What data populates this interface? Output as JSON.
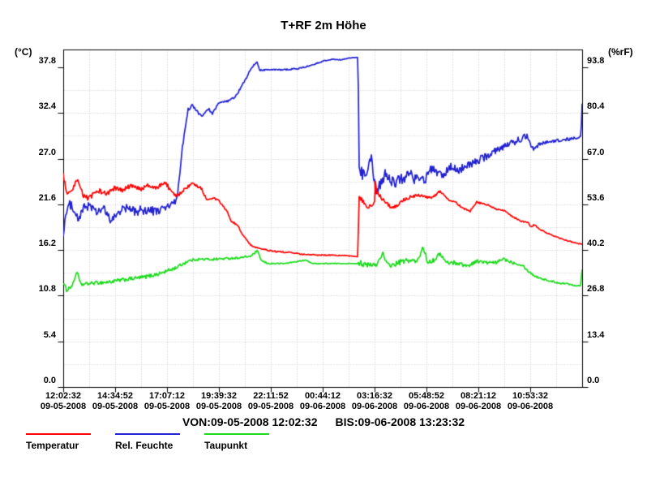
{
  "title": "T+RF 2m Höhe",
  "axes": {
    "left_unit": "(°C)",
    "right_unit": "(%rF)",
    "left_ticks": [
      "37.8",
      "32.4",
      "27.0",
      "21.6",
      "16.2",
      "10.8",
      "5.4",
      "0.0"
    ],
    "right_ticks": [
      "93.8",
      "80.4",
      "67.0",
      "53.6",
      "40.2",
      "26.8",
      "13.4",
      "0.0"
    ],
    "x_ticks": [
      {
        "time": "12:02:32",
        "date": "09-05-2008"
      },
      {
        "time": "14:34:52",
        "date": "09-05-2008"
      },
      {
        "time": "17:07:12",
        "date": "09-05-2008"
      },
      {
        "time": "19:39:32",
        "date": "09-05-2008"
      },
      {
        "time": "22:11:52",
        "date": "09-05-2008"
      },
      {
        "time": "00:44:12",
        "date": "09-06-2008"
      },
      {
        "time": "03:16:32",
        "date": "09-06-2008"
      },
      {
        "time": "05:48:52",
        "date": "09-06-2008"
      },
      {
        "time": "08:21:12",
        "date": "09-06-2008"
      },
      {
        "time": "10:53:32",
        "date": "09-06-2008"
      }
    ]
  },
  "footer": {
    "von": "VON:09-05-2008 12:02:32",
    "bis": "BIS:09-06-2008 13:23:32"
  },
  "legend": [
    {
      "label": "Temperatur",
      "color": "#ff0000"
    },
    {
      "label": "Rel. Feuchte",
      "color": "#2222d2"
    },
    {
      "label": "Taupunkt",
      "color": "#1cdb1c"
    }
  ],
  "colors": {
    "grid": "#c8c8c8",
    "axis": "#000000",
    "background": "#ffffff"
  },
  "chart_data": {
    "type": "line",
    "title": "T+RF 2m Höhe",
    "x_start": "09-05-2008 12:02:32",
    "x_end": "09-06-2008 13:23:32",
    "x_range_hours": [
      0,
      25.35
    ],
    "x_tick_interval": "02:32:20",
    "left_axis": {
      "label": "(°C)",
      "top_tick": 37.8,
      "major_step": 5.4,
      "minor_step": 2.7,
      "min": 0
    },
    "right_axis": {
      "label": "(%rF)",
      "top_tick": 93.8,
      "major_step": 13.4,
      "minor_step": 6.7,
      "min": 0
    },
    "grid": true,
    "legend_position": "bottom-left",
    "series": [
      {
        "name": "Taupunkt",
        "axis": "left",
        "unit": "°C",
        "color": "#1cdb1c",
        "points": [
          [
            0,
            12.3,
            0.2
          ],
          [
            0.16,
            11.5,
            0.25
          ],
          [
            0.45,
            12.0,
            0.2
          ],
          [
            0.67,
            13.7,
            0.15
          ],
          [
            0.85,
            12.1,
            0.2
          ],
          [
            1.5,
            12.3,
            0.2
          ],
          [
            2.2,
            12.4,
            0.22
          ],
          [
            3.0,
            12.7,
            0.22
          ],
          [
            3.96,
            13.0,
            0.22
          ],
          [
            4.7,
            13.4,
            0.22
          ],
          [
            5.5,
            14.1,
            0.2
          ],
          [
            6.1,
            14.9,
            0.18
          ],
          [
            6.5,
            15.1,
            0.15
          ],
          [
            7.3,
            15.1,
            0.15
          ],
          [
            8.0,
            15.2,
            0.12
          ],
          [
            8.7,
            15.3,
            0.12
          ],
          [
            9.19,
            15.5,
            0.12
          ],
          [
            9.47,
            16.1,
            0.12
          ],
          [
            9.7,
            14.9,
            0.1
          ],
          [
            10.0,
            14.6,
            0.08
          ],
          [
            10.8,
            14.6,
            0.06
          ],
          [
            11.84,
            15.0,
            0.06
          ],
          [
            12.2,
            14.6,
            0.05
          ],
          [
            13.3,
            14.6,
            0.05
          ],
          [
            14.4,
            14.6,
            0
          ],
          [
            14.44,
            14.9,
            0.5
          ],
          [
            14.73,
            14.4,
            0.35
          ],
          [
            15.05,
            14.4,
            0.3
          ],
          [
            15.33,
            14.5,
            0.3
          ],
          [
            15.6,
            15.9,
            0.2
          ],
          [
            15.8,
            14.5,
            0.3
          ],
          [
            16.1,
            14.4,
            0.3
          ],
          [
            16.5,
            14.8,
            0.3
          ],
          [
            16.9,
            15.0,
            0.3
          ],
          [
            17.3,
            14.8,
            0.3
          ],
          [
            17.58,
            16.6,
            0.2
          ],
          [
            17.8,
            14.8,
            0.3
          ],
          [
            18.1,
            15.0,
            0.25
          ],
          [
            18.42,
            15.8,
            0.2
          ],
          [
            18.7,
            14.7,
            0.25
          ],
          [
            19.2,
            14.7,
            0.25
          ],
          [
            19.76,
            14.3,
            0.2
          ],
          [
            20.2,
            14.9,
            0.2
          ],
          [
            20.68,
            14.7,
            0.2
          ],
          [
            21.19,
            14.7,
            0.18
          ],
          [
            21.47,
            15.2,
            0.18
          ],
          [
            21.86,
            14.8,
            0.18
          ],
          [
            22.46,
            14.4,
            0.15
          ],
          [
            22.66,
            13.8,
            0.12
          ],
          [
            23.05,
            13.1,
            0.12
          ],
          [
            23.65,
            12.6,
            0.1
          ],
          [
            24.24,
            12.3,
            0.1
          ],
          [
            24.64,
            12.2,
            0.08
          ],
          [
            25.03,
            12.0,
            0.08
          ],
          [
            25.27,
            12.0,
            0.06
          ],
          [
            25.35,
            13.9,
            0.05
          ]
        ]
      },
      {
        "name": "Rel. Feuchte",
        "axis": "right",
        "unit": "%rF",
        "color": "#2222d2",
        "points": [
          [
            0,
            44.5,
            0.8
          ],
          [
            0.1,
            50.0,
            1.2
          ],
          [
            0.3,
            53.5,
            1.3
          ],
          [
            0.55,
            52.5,
            1.3
          ],
          [
            0.71,
            48.8,
            1.2
          ],
          [
            1.0,
            52.5,
            1.3
          ],
          [
            1.3,
            53.5,
            1.3
          ],
          [
            1.6,
            51.0,
            1.4
          ],
          [
            1.95,
            52.5,
            1.3
          ],
          [
            2.34,
            48.5,
            1.2
          ],
          [
            2.7,
            51.5,
            1.3
          ],
          [
            3.05,
            52.5,
            1.3
          ],
          [
            3.5,
            51.5,
            1.4
          ],
          [
            4.0,
            52.0,
            1.4
          ],
          [
            4.5,
            51.5,
            1.4
          ],
          [
            5.0,
            52.5,
            1.3
          ],
          [
            5.54,
            54.5,
            0.9
          ],
          [
            5.82,
            70.0,
            0.7
          ],
          [
            6.1,
            81.4,
            0.5
          ],
          [
            6.3,
            82.6,
            0.4
          ],
          [
            6.73,
            79.5,
            0.4
          ],
          [
            7.13,
            81.4,
            0.35
          ],
          [
            7.29,
            80.2,
            0.35
          ],
          [
            7.6,
            83.3,
            0.3
          ],
          [
            8.0,
            83.8,
            0.3
          ],
          [
            8.4,
            85.0,
            0.3
          ],
          [
            8.79,
            89.0,
            0.3
          ],
          [
            9.19,
            93.5,
            0.3
          ],
          [
            9.47,
            95.5,
            0.25
          ],
          [
            9.59,
            93.0,
            0.25
          ],
          [
            9.98,
            93.1,
            0.2
          ],
          [
            10.77,
            93.1,
            0.2
          ],
          [
            11.57,
            93.5,
            0.2
          ],
          [
            12.16,
            94.5,
            0.15
          ],
          [
            12.75,
            95.7,
            0.15
          ],
          [
            13.15,
            96.2,
            0.12
          ],
          [
            13.55,
            96.0,
            0.12
          ],
          [
            14.06,
            96.6,
            0.1
          ],
          [
            14.4,
            96.7,
            0
          ],
          [
            14.46,
            64.0,
            1.8
          ],
          [
            14.61,
            62.5,
            2.0
          ],
          [
            14.85,
            64.0,
            1.8
          ],
          [
            15.05,
            68.0,
            1.2
          ],
          [
            15.25,
            57.5,
            1.5
          ],
          [
            15.41,
            58.5,
            1.8
          ],
          [
            15.72,
            62.5,
            1.8
          ],
          [
            16.0,
            60.0,
            1.8
          ],
          [
            16.32,
            60.5,
            1.8
          ],
          [
            16.71,
            61.5,
            1.8
          ],
          [
            16.91,
            63.0,
            1.6
          ],
          [
            17.19,
            60.8,
            1.6
          ],
          [
            17.5,
            62.3,
            1.6
          ],
          [
            17.7,
            60.5,
            1.6
          ],
          [
            17.9,
            63.5,
            1.5
          ],
          [
            18.3,
            63.0,
            1.5
          ],
          [
            18.6,
            62.0,
            1.5
          ],
          [
            18.9,
            64.5,
            1.4
          ],
          [
            19.2,
            63.5,
            1.4
          ],
          [
            19.49,
            64.3,
            1.3
          ],
          [
            20.08,
            65.9,
            1.2
          ],
          [
            20.68,
            67.6,
            1.1
          ],
          [
            21.27,
            70.0,
            1.0
          ],
          [
            21.86,
            71.4,
            1.0
          ],
          [
            22.46,
            73.1,
            0.9
          ],
          [
            22.66,
            74.0,
            0.8
          ],
          [
            22.94,
            70.0,
            0.8
          ],
          [
            23.25,
            71.2,
            0.7
          ],
          [
            23.57,
            71.9,
            0.6
          ],
          [
            23.95,
            72.0,
            0.6
          ],
          [
            24.4,
            72.5,
            0.5
          ],
          [
            24.8,
            72.8,
            0.5
          ],
          [
            25.19,
            73.3,
            0.4
          ],
          [
            25.29,
            73.5,
            0.3
          ],
          [
            25.35,
            83.0,
            0.2
          ]
        ]
      },
      {
        "name": "Temperatur",
        "axis": "left",
        "unit": "°C",
        "color": "#ff0000",
        "points": [
          [
            0,
            25.1,
            0.2
          ],
          [
            0.2,
            22.6,
            0.3
          ],
          [
            0.45,
            23.2,
            0.3
          ],
          [
            0.67,
            24.5,
            0.25
          ],
          [
            1.0,
            22.6,
            0.3
          ],
          [
            1.27,
            22.3,
            0.3
          ],
          [
            1.7,
            23.3,
            0.3
          ],
          [
            2.1,
            22.8,
            0.3
          ],
          [
            2.5,
            23.5,
            0.3
          ],
          [
            2.9,
            23.2,
            0.3
          ],
          [
            3.3,
            23.8,
            0.3
          ],
          [
            3.7,
            23.4,
            0.3
          ],
          [
            4.1,
            23.8,
            0.25
          ],
          [
            4.5,
            23.5,
            0.25
          ],
          [
            5.0,
            24.2,
            0.25
          ],
          [
            5.3,
            23.0,
            0.25
          ],
          [
            5.54,
            22.5,
            0.2
          ],
          [
            5.82,
            23.2,
            0.2
          ],
          [
            6.3,
            24.0,
            0.2
          ],
          [
            6.73,
            23.6,
            0.2
          ],
          [
            7.0,
            22.2,
            0.15
          ],
          [
            7.3,
            22.4,
            0.15
          ],
          [
            7.6,
            22.0,
            0.1
          ],
          [
            7.8,
            21.4,
            0.1
          ],
          [
            8.0,
            20.8,
            0.1
          ],
          [
            8.2,
            19.6,
            0.1
          ],
          [
            8.5,
            19.2,
            0.1
          ],
          [
            8.79,
            17.9,
            0.08
          ],
          [
            9.19,
            16.7,
            0.08
          ],
          [
            9.7,
            16.3,
            0.08
          ],
          [
            10.4,
            16.0,
            0.08
          ],
          [
            11.17,
            15.9,
            0.06
          ],
          [
            11.57,
            15.7,
            0.06
          ],
          [
            12.36,
            15.6,
            0.06
          ],
          [
            13.0,
            15.6,
            0.05
          ],
          [
            14.0,
            15.5,
            0.05
          ],
          [
            14.4,
            15.4,
            0
          ],
          [
            14.44,
            22.4,
            0.25
          ],
          [
            14.61,
            22.1,
            0.25
          ],
          [
            14.85,
            21.1,
            0.25
          ],
          [
            15.05,
            21.5,
            0.2
          ],
          [
            15.2,
            21.6,
            0.2
          ],
          [
            15.25,
            24.3,
            0.15
          ],
          [
            15.33,
            22.9,
            0.2
          ],
          [
            15.41,
            22.7,
            0.25
          ],
          [
            15.8,
            21.8,
            0.25
          ],
          [
            16.04,
            21.1,
            0.2
          ],
          [
            16.32,
            21.5,
            0.2
          ],
          [
            16.59,
            22.1,
            0.2
          ],
          [
            16.99,
            22.5,
            0.2
          ],
          [
            17.19,
            22.5,
            0.25
          ],
          [
            17.5,
            22.8,
            0.2
          ],
          [
            17.7,
            22.4,
            0.2
          ],
          [
            18.02,
            22.4,
            0.15
          ],
          [
            18.42,
            23.2,
            0.15
          ],
          [
            18.81,
            22.2,
            0.12
          ],
          [
            19.17,
            21.8,
            0.1
          ],
          [
            19.57,
            21.1,
            0.1
          ],
          [
            19.88,
            20.8,
            0.1
          ],
          [
            20.2,
            21.9,
            0.1
          ],
          [
            20.56,
            21.6,
            0.1
          ],
          [
            20.79,
            21.5,
            0.08
          ],
          [
            21.19,
            21.0,
            0.08
          ],
          [
            21.59,
            20.8,
            0.08
          ],
          [
            21.98,
            20.1,
            0.08
          ],
          [
            22.38,
            19.6,
            0.08
          ],
          [
            22.74,
            19.4,
            0.08
          ],
          [
            22.86,
            18.9,
            0.08
          ],
          [
            23.0,
            19.2,
            0.08
          ],
          [
            23.33,
            18.6,
            0.06
          ],
          [
            23.73,
            18.1,
            0.06
          ],
          [
            24.12,
            17.7,
            0.06
          ],
          [
            24.52,
            17.4,
            0.06
          ],
          [
            24.92,
            17.1,
            0.06
          ],
          [
            25.35,
            16.9,
            0.06
          ]
        ]
      }
    ]
  }
}
